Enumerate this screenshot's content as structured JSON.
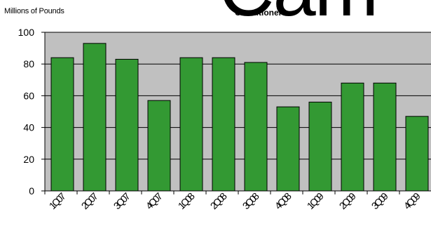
{
  "watermark": "Cam",
  "chart_data": {
    "type": "bar",
    "title": "Conditioners",
    "xlabel": "",
    "ylabel": "Millions of Pounds",
    "categories": [
      "1Q07",
      "2Q07",
      "3Q07",
      "4Q07",
      "1Q08",
      "2Q08",
      "3Q08",
      "4Q08",
      "1Q09",
      "2Q09",
      "3Q09",
      "4Q09"
    ],
    "values": [
      84,
      93,
      83,
      57,
      84,
      84,
      81,
      53,
      56,
      68,
      68,
      47
    ],
    "ylim": [
      0,
      100
    ],
    "yticks": [
      0,
      20,
      40,
      60,
      80,
      100
    ],
    "grid": true,
    "colors": {
      "bar": "#339933",
      "plot_bg": "#c0c0c0",
      "bar_edge": "#000000"
    }
  }
}
